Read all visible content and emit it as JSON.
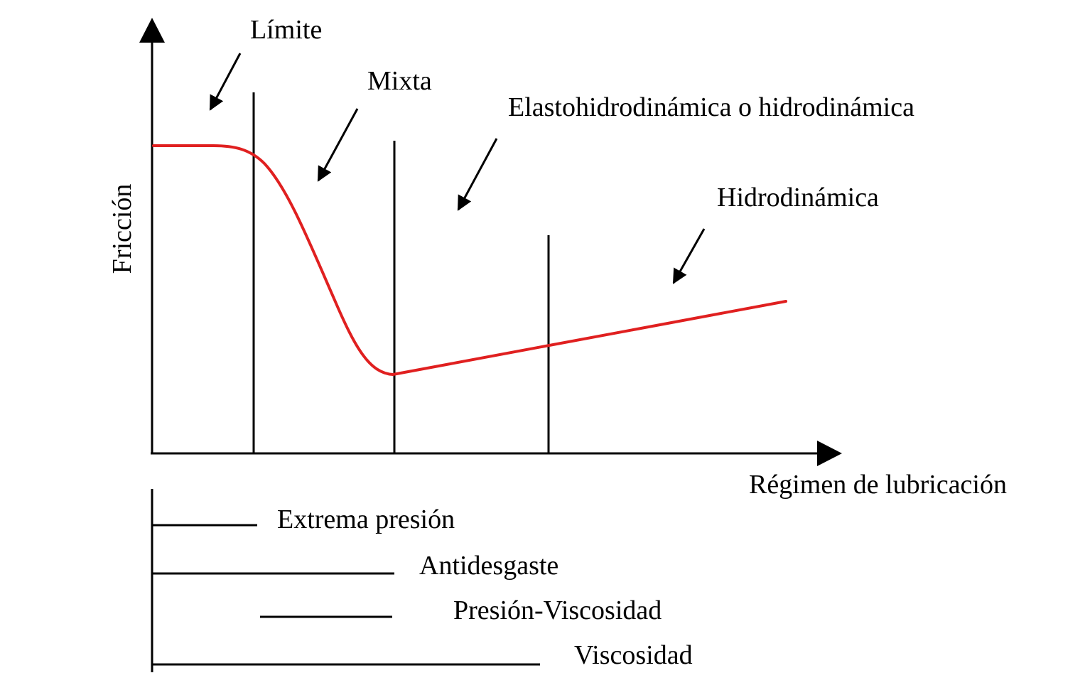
{
  "axes": {
    "y_label": "Fricción",
    "x_label": "Régimen de lubricación"
  },
  "regimes": [
    {
      "label": "Límite"
    },
    {
      "label": "Mixta"
    },
    {
      "label": "Elastohidrodinámica o hidrodinámica"
    },
    {
      "label": "Hidrodinámica"
    }
  ],
  "additives": [
    {
      "label": "Extrema presión"
    },
    {
      "label": "Antidesgaste"
    },
    {
      "label": "Presión-Viscosidad"
    },
    {
      "label": "Viscosidad"
    }
  ],
  "colors": {
    "curve": "#e02020",
    "lines": "#000000"
  }
}
